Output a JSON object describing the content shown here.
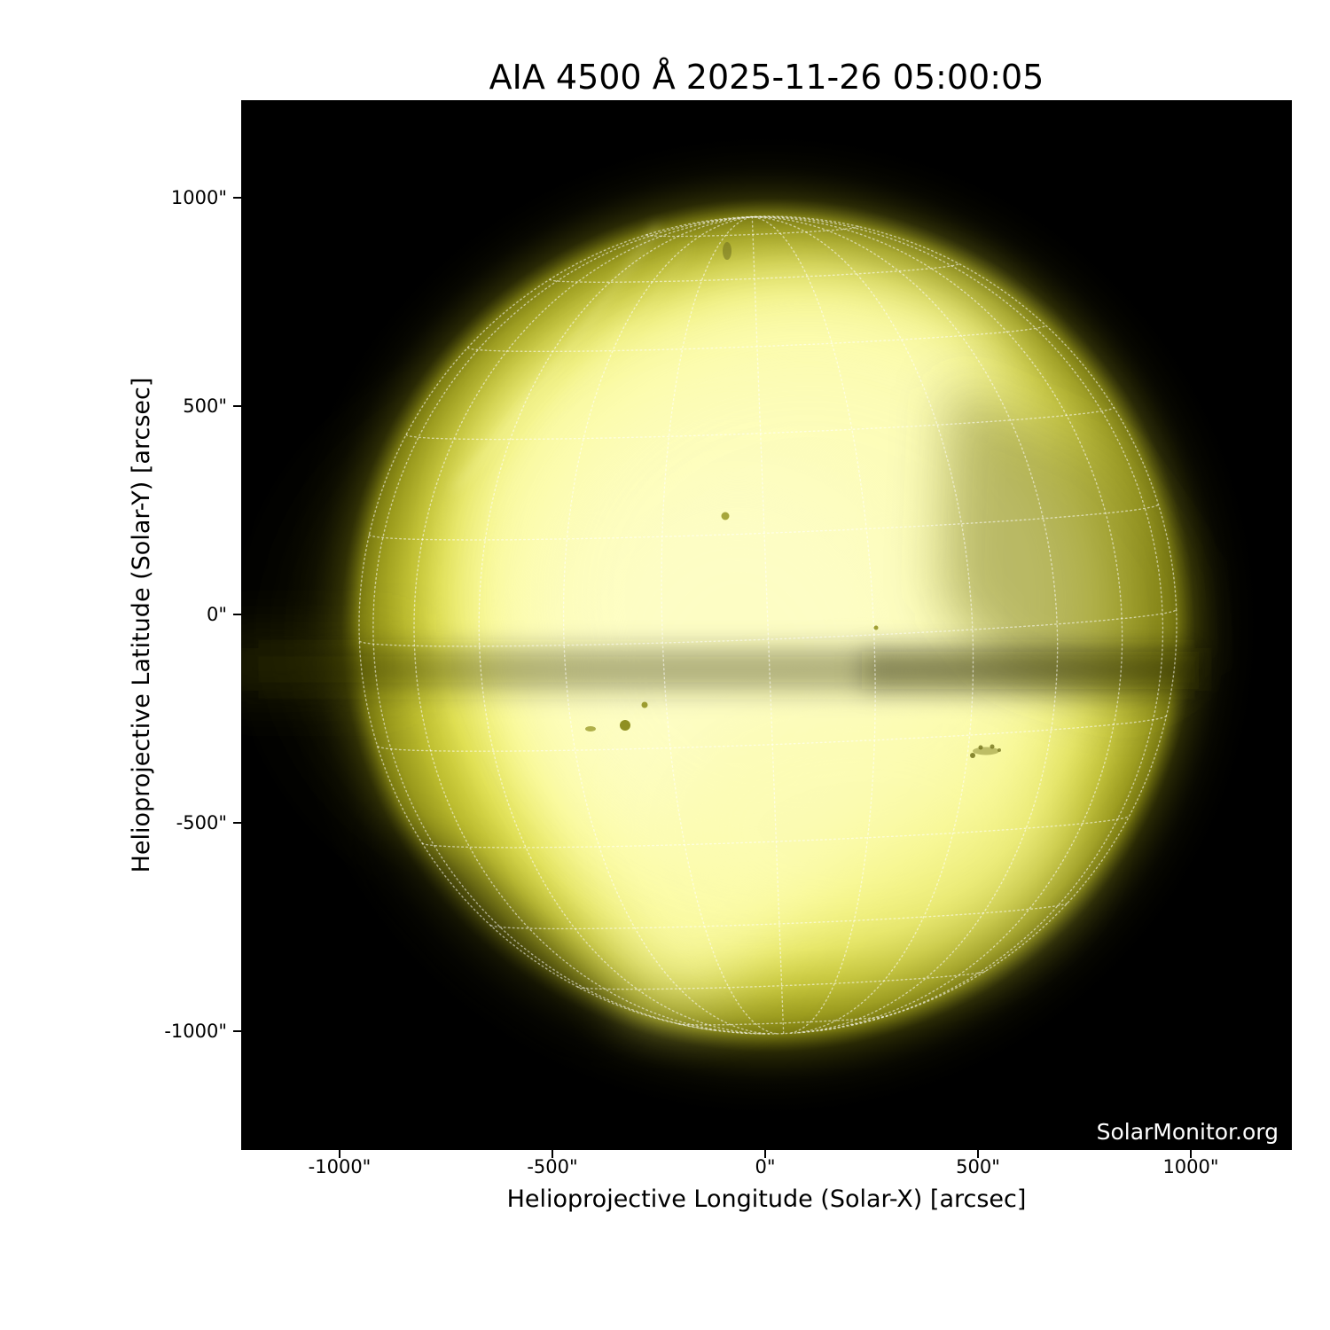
{
  "figure": {
    "title": "AIA 4500 Å 2025-11-26 05:00:05",
    "watermark": "SolarMonitor.org",
    "background_color": "#ffffff",
    "plot_background_color": "#000000"
  },
  "axes": {
    "x": {
      "label": "Helioprojective Longitude (Solar-X) [arcsec]",
      "ticks": [
        "-1000\"",
        "-500\"",
        "0\"",
        "500\"",
        "1000\""
      ]
    },
    "y": {
      "label": "Helioprojective Latitude (Solar-Y) [arcsec]",
      "ticks": [
        "1000\"",
        "500\"",
        "0\"",
        "-500\"",
        "-1000\""
      ]
    }
  },
  "chart_data": {
    "type": "heatmap",
    "subtype": "full-disk solar continuum image",
    "title": "AIA 4500 Å 2025-11-26 05:00:05",
    "instrument": "AIA",
    "wavelength": "4500 Å",
    "observation_time": "2025-11-26 05:00:05",
    "xlabel": "Helioprojective Longitude (Solar-X) [arcsec]",
    "ylabel": "Helioprojective Latitude (Solar-Y) [arcsec]",
    "xlim": [
      -1228,
      1228
    ],
    "ylim": [
      -1228,
      1228
    ],
    "x_ticks_arcsec": [
      -1000,
      -500,
      0,
      500,
      1000
    ],
    "y_ticks_arcsec": [
      1000,
      500,
      0,
      -500,
      -1000
    ],
    "grid": {
      "style": "dotted",
      "system": "heliographic",
      "spacing_deg": 15,
      "color": "rgba(255,255,255,0.55)"
    },
    "solar_disk": {
      "center_arcsec": [
        0,
        0
      ],
      "radius_arcsec": 960,
      "core_color": "#f8f88c",
      "bright_color": "#fcfcb4",
      "mid_color": "#d8d83c",
      "limb_color": "#7c7c10"
    },
    "features": {
      "sunspots_arcsec": [
        [
          -103,
          236
        ],
        [
          -291,
          -217
        ],
        [
          -336,
          -266
        ],
        [
          -417,
          -274
        ],
        [
          247,
          -32
        ],
        [
          503,
          -326
        ]
      ],
      "bright_region": "irregular bright plage area covering centre and lower-left of disk",
      "dark_features": [
        "diagonal dark wedge on right side from ~(590,560) to ~(330,-30) arcsec",
        "horizontal dark band just south of disk centre (~ -100 arcsec latitude)",
        "dark wedge at lower-left limb"
      ]
    },
    "credit": "SolarMonitor.org"
  },
  "colors": {
    "text": "#000000",
    "watermark": "#ffffff",
    "tick": "#000000"
  }
}
